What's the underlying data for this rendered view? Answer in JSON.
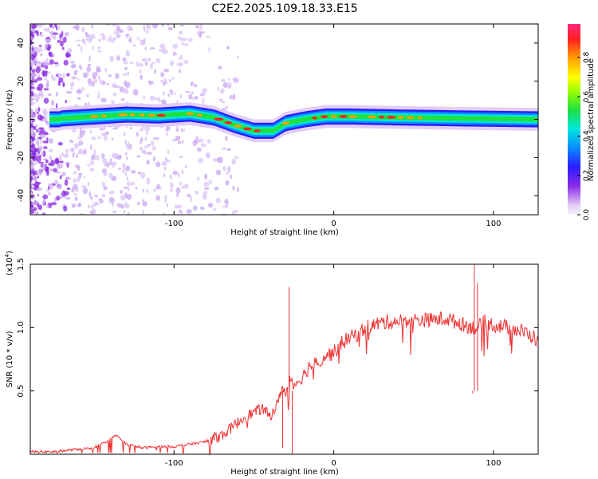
{
  "title": "C2E2.2025.109.18.33.E15",
  "chart_data": [
    {
      "type": "heatmap",
      "xlabel": "Height of straight line (km)",
      "ylabel": "Frequency (Hz)",
      "xlim": [
        -190,
        128
      ],
      "ylim": [
        -50,
        50
      ],
      "xticks": [
        -100,
        0,
        100
      ],
      "yticks": [
        -40,
        -20,
        0,
        20,
        40
      ],
      "colorbar": {
        "label": "Normalized spectral amplitude",
        "range": [
          0,
          0.97
        ],
        "ticks": [
          0.0,
          0.2,
          0.4,
          0.6,
          0.8
        ]
      },
      "ridge": [
        {
          "x": -170,
          "y": 0.5
        },
        {
          "x": -150,
          "y": 1.5
        },
        {
          "x": -130,
          "y": 2.5
        },
        {
          "x": -110,
          "y": 2
        },
        {
          "x": -90,
          "y": 3
        },
        {
          "x": -75,
          "y": 1
        },
        {
          "x": -62,
          "y": -3
        },
        {
          "x": -50,
          "y": -6
        },
        {
          "x": -38,
          "y": -6
        },
        {
          "x": -30,
          "y": -2
        },
        {
          "x": -18,
          "y": 0
        },
        {
          "x": -5,
          "y": 1.5
        },
        {
          "x": 10,
          "y": 1.5
        },
        {
          "x": 40,
          "y": 1
        },
        {
          "x": 80,
          "y": 0.5
        },
        {
          "x": 128,
          "y": 0
        }
      ]
    },
    {
      "type": "line",
      "xlabel": "Height of straight line (km)",
      "ylabel": "SNR (10 * v/v)",
      "yscale_label": "(x10",
      "yscale_exp": "4",
      "yscale_close": ")",
      "xlim": [
        -190,
        128
      ],
      "ylim": [
        0,
        1.5
      ],
      "xticks": [
        -100,
        0,
        100
      ],
      "yticks": [
        0.5,
        1.0,
        1.5
      ],
      "series": [
        {
          "color": "#ee3333",
          "x": [
            -190,
            -175,
            -160,
            -150,
            -145,
            -140,
            -136,
            -130,
            -120,
            -110,
            -100,
            -90,
            -80,
            -75,
            -70,
            -65,
            -60,
            -55,
            -50,
            -45,
            -40,
            -35,
            -32,
            -30,
            -28,
            -25,
            -20,
            -15,
            -10,
            -5,
            0,
            5,
            10,
            15,
            20,
            30,
            40,
            50,
            60,
            70,
            80,
            85,
            88,
            90,
            95,
            100,
            110,
            120,
            128
          ],
          "y": [
            0.02,
            0.02,
            0.04,
            0.05,
            0.08,
            0.12,
            0.15,
            0.08,
            0.05,
            0.06,
            0.06,
            0.08,
            0.1,
            0.13,
            0.15,
            0.2,
            0.25,
            0.3,
            0.33,
            0.36,
            0.3,
            0.4,
            0.55,
            0.45,
            0.62,
            0.55,
            0.6,
            0.7,
            0.72,
            0.78,
            0.8,
            0.88,
            0.92,
            0.95,
            1.0,
            1.04,
            1.05,
            1.06,
            1.06,
            1.07,
            1.03,
            1.01,
            1.0,
            1.0,
            1.05,
            1.02,
            1.0,
            0.96,
            0.9
          ]
        }
      ],
      "spikes": [
        {
          "x": -28,
          "y": 1.32
        },
        {
          "x": -26,
          "y": 0.0
        },
        {
          "x": -32,
          "y": 0.05
        },
        {
          "x": 88,
          "y": 1.56
        },
        {
          "x": 87,
          "y": 0.48
        },
        {
          "x": 90,
          "y": 1.35
        }
      ]
    }
  ]
}
